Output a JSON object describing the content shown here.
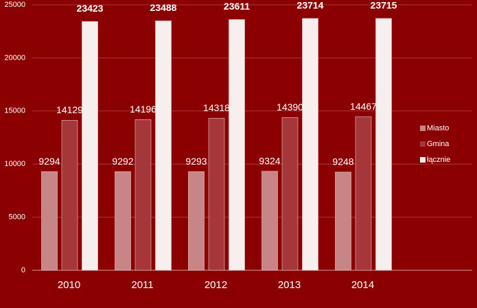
{
  "chart_data": {
    "type": "bar",
    "categories": [
      "2010",
      "2011",
      "2012",
      "2013",
      "2014"
    ],
    "series": [
      {
        "name": "Miasto",
        "color": "#c88585",
        "values": [
          9294,
          9292,
          9293,
          9324,
          9248
        ]
      },
      {
        "name": "Gmina",
        "color": "#a5363a",
        "values": [
          14129,
          14196,
          14318,
          14390,
          14467
        ]
      },
      {
        "name": "łącznie",
        "color": "#f7eeee",
        "values": [
          23423,
          23488,
          23611,
          23714,
          23715
        ]
      }
    ],
    "ylim": [
      0,
      25000
    ],
    "yticks": [
      0,
      5000,
      10000,
      15000,
      20000,
      25000
    ],
    "grid": true,
    "legend": "right"
  }
}
